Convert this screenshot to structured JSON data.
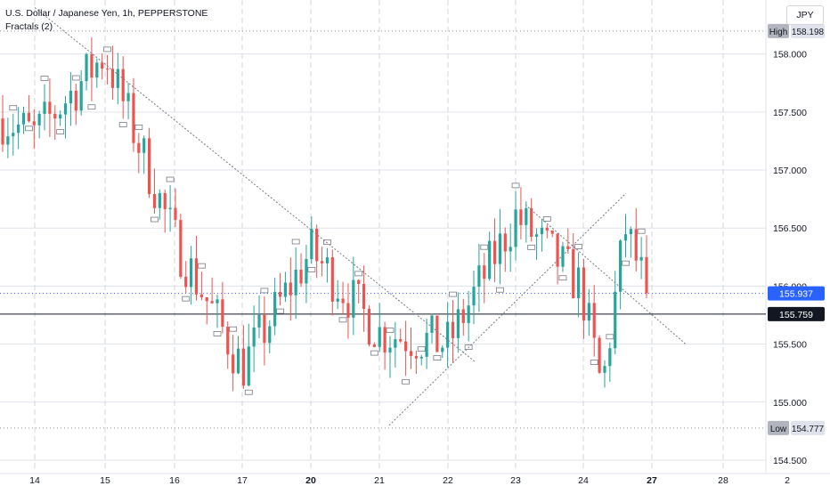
{
  "header": {
    "symbol_title": "U.S. Dollar / Japanese Yen, 1h, PEPPERSTONE",
    "indicator": "Fractals (2)",
    "currency_button": "JPY"
  },
  "price_axis": {
    "ticks": [
      "158.000",
      "157.500",
      "157.000",
      "156.500",
      "156.000",
      "155.500",
      "155.000",
      "154.500"
    ]
  },
  "time_axis": {
    "ticks": [
      "14",
      "15",
      "16",
      "17",
      "20",
      "21",
      "22",
      "23",
      "24",
      "27",
      "28",
      "2"
    ],
    "bold_ticks": [
      "20",
      "27"
    ]
  },
  "markers": {
    "high": {
      "label": "High",
      "value": "158.198"
    },
    "low": {
      "label": "Low",
      "value": "154.777"
    },
    "last_price": {
      "value": "155.937"
    },
    "crosshair": {
      "value": "155.759"
    }
  },
  "colors": {
    "up": "#26a69a",
    "down": "#ef5350",
    "last_price_label": "#2962ff",
    "crosshair_label": "#131722",
    "marker_label": "#b2b5be",
    "grid": "#e0e3eb"
  },
  "chart_data": {
    "type": "candlestick",
    "title": "U.S. Dollar / Japanese Yen, 1h, PEPPERSTONE",
    "timeframe": "1h",
    "ylim": [
      154.4,
      158.35
    ],
    "high": 158.198,
    "low": 154.777,
    "last_price": 155.937,
    "crosshair_price": 155.759,
    "grid": true,
    "x_tick_labels": [
      "14",
      "15",
      "16",
      "17",
      "20",
      "21",
      "22",
      "23",
      "24",
      "27",
      "28",
      "2"
    ],
    "y_tick_labels": [
      158.0,
      157.5,
      157.0,
      156.5,
      156.0,
      155.5,
      155.0,
      154.5
    ],
    "day_close_path": [
      [
        "14",
        157.3
      ],
      [
        "15",
        158.0
      ],
      [
        "16",
        156.4
      ],
      [
        "17",
        155.3
      ],
      [
        "20",
        156.3
      ],
      [
        "21",
        155.6
      ],
      [
        "22",
        155.5
      ],
      [
        "23",
        156.6
      ],
      [
        "24",
        156.0
      ],
      [
        "24",
        155.1
      ],
      [
        "24",
        156.5
      ],
      [
        "24",
        155.95
      ]
    ],
    "trendlines": [
      {
        "from": [
          "14",
          158.4
        ],
        "to": [
          "22",
          155.35
        ]
      },
      {
        "from": [
          "21",
          154.8
        ],
        "to": [
          "24",
          156.8
        ]
      },
      {
        "from": [
          "23",
          156.7
        ],
        "to": [
          "24",
          155.5
        ]
      }
    ]
  }
}
